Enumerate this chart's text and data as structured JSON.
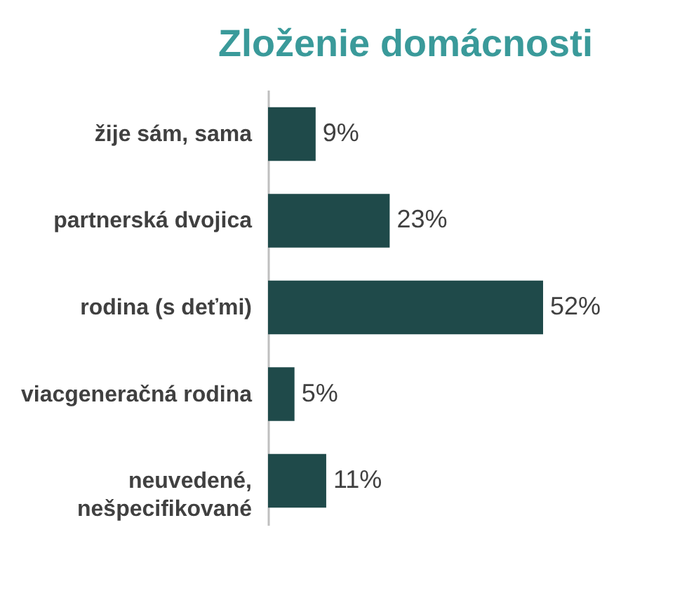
{
  "chart_data": {
    "type": "bar",
    "orientation": "horizontal",
    "title": "Zloženie domácnosti",
    "categories": [
      "žije sám, sama",
      "partnerská dvojica",
      "rodina (s deťmi)",
      "viacgeneračná  rodina",
      "neuvedené,\nnešpecifikované"
    ],
    "values": [
      9,
      23,
      52,
      5,
      11
    ],
    "value_labels": [
      "9%",
      "23%",
      "52%",
      "5%",
      "11%"
    ],
    "color": "#1f4a4a"
  }
}
